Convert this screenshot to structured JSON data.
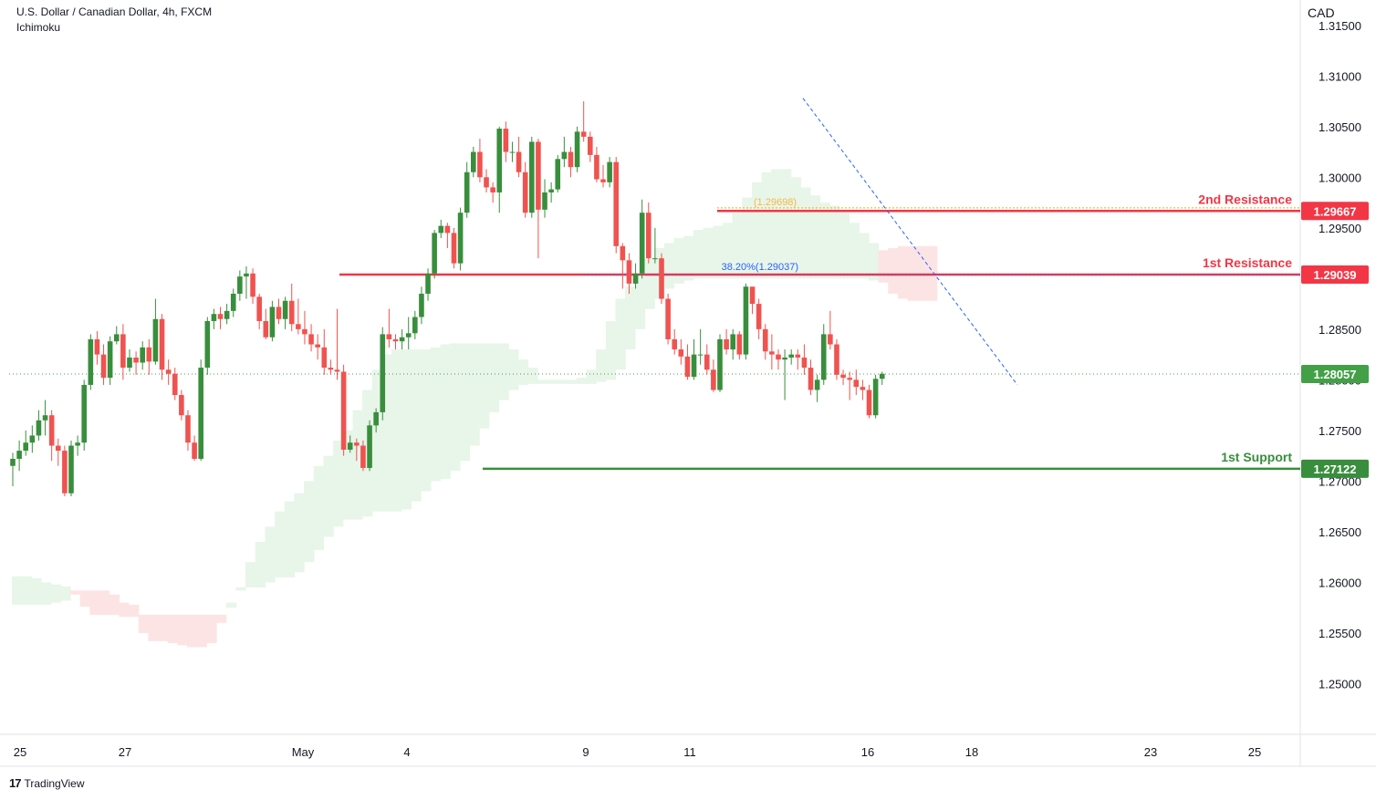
{
  "header": {
    "line1": "U.S. Dollar / Canadian Dollar, 4h, FXCM",
    "line2": "Ichimoku"
  },
  "axis": {
    "currency": "CAD"
  },
  "branding": {
    "name": "TradingView"
  },
  "colors": {
    "bull": "#388e3c",
    "bear": "#ef5350",
    "resistance": "#f23645",
    "support": "#388e3c",
    "fib_upper": "#f5b942",
    "fib_lower": "#2962ff",
    "cloud_green": "#e8f5e9",
    "cloud_red": "#fde4e4",
    "current_price": "#43a047"
  },
  "chart_data": {
    "type": "candlestick",
    "ylim": [
      1.245,
      1.3175
    ],
    "y_ticks": [
      "1.25000",
      "1.25500",
      "1.26000",
      "1.26500",
      "1.27000",
      "1.27500",
      "1.28000",
      "1.28500",
      "1.29000",
      "1.29500",
      "1.30000",
      "1.30500",
      "1.31000",
      "1.31500"
    ],
    "x_ticks": [
      "25",
      "27",
      "May",
      "4",
      "9",
      "11",
      "16",
      "18",
      "23",
      "25"
    ],
    "levels": [
      {
        "name": "2nd Resistance",
        "value": "1.29667",
        "kind": "resistance"
      },
      {
        "name": "1st Resistance",
        "value": "1.29039",
        "kind": "resistance"
      },
      {
        "name": "1st Support",
        "value": "1.27122",
        "kind": "support"
      }
    ],
    "current_price": "1.28057",
    "fibonacci": [
      {
        "label": "(1.29698)",
        "value": 1.29698
      },
      {
        "label": "38.20%(1.29037)",
        "value": 1.29037
      }
    ],
    "candles": [
      [
        1.2715,
        1.2722,
        1.2695,
        1.2728
      ],
      [
        1.2722,
        1.273,
        1.271,
        1.274
      ],
      [
        1.273,
        1.2738,
        1.2725,
        1.275
      ],
      [
        1.2738,
        1.2745,
        1.2728,
        1.2755
      ],
      [
        1.2745,
        1.276,
        1.274,
        1.277
      ],
      [
        1.276,
        1.2765,
        1.2745,
        1.278
      ],
      [
        1.2765,
        1.2735,
        1.272,
        1.277
      ],
      [
        1.2735,
        1.273,
        1.2715,
        1.2742
      ],
      [
        1.273,
        1.2688,
        1.2685,
        1.2735
      ],
      [
        1.2688,
        1.2735,
        1.2685,
        1.274
      ],
      [
        1.2735,
        1.2738,
        1.2725,
        1.2745
      ],
      [
        1.2738,
        1.2795,
        1.273,
        1.28
      ],
      [
        1.2795,
        1.284,
        1.279,
        1.2845
      ],
      [
        1.284,
        1.2825,
        1.2815,
        1.2848
      ],
      [
        1.2825,
        1.2802,
        1.2795,
        1.2835
      ],
      [
        1.2802,
        1.2838,
        1.2795,
        1.2843
      ],
      [
        1.2838,
        1.2845,
        1.2835,
        1.2853
      ],
      [
        1.2845,
        1.2812,
        1.28,
        1.2855
      ],
      [
        1.2812,
        1.2822,
        1.2808,
        1.283
      ],
      [
        1.2822,
        1.2817,
        1.2805,
        1.2828
      ],
      [
        1.2817,
        1.2832,
        1.281,
        1.2838
      ],
      [
        1.2832,
        1.2818,
        1.2805,
        1.284
      ],
      [
        1.2818,
        1.286,
        1.2815,
        1.288
      ],
      [
        1.286,
        1.281,
        1.28,
        1.2865
      ],
      [
        1.281,
        1.2806,
        1.2795,
        1.282
      ],
      [
        1.2806,
        1.2785,
        1.278,
        1.2812
      ],
      [
        1.2785,
        1.2765,
        1.276,
        1.279
      ],
      [
        1.2765,
        1.2738,
        1.273,
        1.277
      ],
      [
        1.2738,
        1.2722,
        1.272,
        1.2745
      ],
      [
        1.2722,
        1.2812,
        1.272,
        1.282
      ],
      [
        1.2812,
        1.2858,
        1.2805,
        1.2862
      ],
      [
        1.2858,
        1.2865,
        1.285,
        1.287
      ],
      [
        1.2865,
        1.286,
        1.285,
        1.2872
      ],
      [
        1.286,
        1.2868,
        1.2855,
        1.2875
      ],
      [
        1.2868,
        1.2885,
        1.2862,
        1.289
      ],
      [
        1.2885,
        1.2902,
        1.2878,
        1.2908
      ],
      [
        1.2902,
        1.2905,
        1.288,
        1.2912
      ],
      [
        1.2905,
        1.2882,
        1.2875,
        1.291
      ],
      [
        1.2882,
        1.2858,
        1.285,
        1.2885
      ],
      [
        1.2858,
        1.2842,
        1.284,
        1.287
      ],
      [
        1.2842,
        1.2872,
        1.2838,
        1.2878
      ],
      [
        1.2872,
        1.286,
        1.2855,
        1.288
      ],
      [
        1.286,
        1.2878,
        1.285,
        1.2882
      ],
      [
        1.2878,
        1.2855,
        1.2848,
        1.2895
      ],
      [
        1.2855,
        1.285,
        1.2845,
        1.288
      ],
      [
        1.285,
        1.2845,
        1.2835,
        1.2868
      ],
      [
        1.2845,
        1.2835,
        1.2828,
        1.2855
      ],
      [
        1.2835,
        1.2832,
        1.282,
        1.2845
      ],
      [
        1.2832,
        1.2812,
        1.2805,
        1.285
      ],
      [
        1.2812,
        1.281,
        1.2805,
        1.282
      ],
      [
        1.281,
        1.2808,
        1.28,
        1.287
      ],
      [
        1.2808,
        1.2731,
        1.2725,
        1.2815
      ],
      [
        1.2731,
        1.2738,
        1.2728,
        1.2745
      ],
      [
        1.2738,
        1.2735,
        1.272,
        1.2742
      ],
      [
        1.2735,
        1.2713,
        1.271,
        1.274
      ],
      [
        1.2713,
        1.2755,
        1.271,
        1.276
      ],
      [
        1.2755,
        1.2768,
        1.2748,
        1.2772
      ],
      [
        1.2768,
        1.2845,
        1.276,
        1.2852
      ],
      [
        1.2845,
        1.284,
        1.2832,
        1.287
      ],
      [
        1.284,
        1.2838,
        1.283,
        1.2845
      ],
      [
        1.2838,
        1.2842,
        1.283,
        1.285
      ],
      [
        1.2842,
        1.2846,
        1.283,
        1.2862
      ],
      [
        1.2846,
        1.2862,
        1.284,
        1.2868
      ],
      [
        1.2862,
        1.2885,
        1.2855,
        1.2892
      ],
      [
        1.2885,
        1.2905,
        1.2878,
        1.291
      ],
      [
        1.2905,
        1.2945,
        1.29,
        1.2948
      ],
      [
        1.2945,
        1.2952,
        1.294,
        1.2958
      ],
      [
        1.2952,
        1.2945,
        1.293,
        1.2955
      ],
      [
        1.2945,
        1.2915,
        1.291,
        1.295
      ],
      [
        1.2915,
        1.2965,
        1.2908,
        1.297
      ],
      [
        1.2965,
        1.3005,
        1.296,
        1.3015
      ],
      [
        1.3005,
        1.3025,
        1.3,
        1.303
      ],
      [
        1.3025,
        1.3,
        1.2995,
        1.3038
      ],
      [
        1.3,
        1.299,
        1.2985,
        1.3008
      ],
      [
        1.299,
        1.2985,
        1.2975,
        1.2995
      ],
      [
        1.2985,
        1.3048,
        1.2965,
        1.305
      ],
      [
        1.3048,
        1.3025,
        1.3015,
        1.3055
      ],
      [
        1.3025,
        1.3025,
        1.3015,
        1.3035
      ],
      [
        1.3025,
        1.3005,
        1.3,
        1.304
      ],
      [
        1.3005,
        1.2965,
        1.296,
        1.3015
      ],
      [
        1.2965,
        1.3035,
        1.296,
        1.304
      ],
      [
        1.3035,
        1.2968,
        1.292,
        1.3038
      ],
      [
        1.2968,
        1.2985,
        1.296,
        1.2998
      ],
      [
        1.2985,
        1.2988,
        1.2975,
        1.2995
      ],
      [
        1.2988,
        1.3018,
        1.2985,
        1.3022
      ],
      [
        1.3018,
        1.3025,
        1.301,
        1.304
      ],
      [
        1.3025,
        1.301,
        1.3,
        1.303
      ],
      [
        1.301,
        1.3045,
        1.3005,
        1.305
      ],
      [
        1.3045,
        1.304,
        1.3035,
        1.3075
      ],
      [
        1.304,
        1.3022,
        1.3015,
        1.3045
      ],
      [
        1.3022,
        1.2998,
        1.2995,
        1.303
      ],
      [
        1.2998,
        1.2995,
        1.299,
        1.3012
      ],
      [
        1.2995,
        1.3015,
        1.299,
        1.302
      ],
      [
        1.3015,
        1.2932,
        1.2925,
        1.302
      ],
      [
        1.2932,
        1.2918,
        1.289,
        1.2935
      ],
      [
        1.2918,
        1.2895,
        1.2885,
        1.2925
      ],
      [
        1.2895,
        1.2905,
        1.289,
        1.2915
      ],
      [
        1.2905,
        1.2965,
        1.29,
        1.2978
      ],
      [
        1.2965,
        1.292,
        1.2915,
        1.2975
      ],
      [
        1.292,
        1.292,
        1.2915,
        1.295
      ],
      [
        1.292,
        1.288,
        1.2875,
        1.2925
      ],
      [
        1.288,
        1.284,
        1.2835,
        1.2885
      ],
      [
        1.284,
        1.283,
        1.2825,
        1.285
      ],
      [
        1.283,
        1.2823,
        1.2815,
        1.284
      ],
      [
        1.2823,
        1.2803,
        1.28,
        1.2835
      ],
      [
        1.2803,
        1.2825,
        1.28,
        1.284
      ],
      [
        1.2825,
        1.2825,
        1.2815,
        1.285
      ],
      [
        1.2825,
        1.281,
        1.2805,
        1.2835
      ],
      [
        1.281,
        1.279,
        1.2788,
        1.282
      ],
      [
        1.279,
        1.284,
        1.2788,
        1.2845
      ],
      [
        1.284,
        1.283,
        1.2825,
        1.285
      ],
      [
        1.283,
        1.2845,
        1.282,
        1.285
      ],
      [
        1.2845,
        1.2825,
        1.282,
        1.2848
      ],
      [
        1.2825,
        1.2892,
        1.282,
        1.2895
      ],
      [
        1.2892,
        1.2875,
        1.2865,
        1.289
      ],
      [
        1.2875,
        1.285,
        1.284,
        1.288
      ],
      [
        1.285,
        1.2828,
        1.282,
        1.2855
      ],
      [
        1.2828,
        1.2825,
        1.281,
        1.2845
      ],
      [
        1.2825,
        1.282,
        1.281,
        1.283
      ],
      [
        1.282,
        1.2822,
        1.278,
        1.283
      ],
      [
        1.2822,
        1.2825,
        1.2815,
        1.283
      ],
      [
        1.2825,
        1.2822,
        1.281,
        1.283
      ],
      [
        1.2822,
        1.2812,
        1.2805,
        1.2835
      ],
      [
        1.2812,
        1.279,
        1.2785,
        1.282
      ],
      [
        1.279,
        1.28,
        1.2778,
        1.2805
      ],
      [
        1.28,
        1.2845,
        1.2795,
        1.2855
      ],
      [
        1.2845,
        1.2835,
        1.283,
        1.2868
      ],
      [
        1.2835,
        1.2805,
        1.28,
        1.284
      ],
      [
        1.2805,
        1.2802,
        1.2795,
        1.281
      ],
      [
        1.2802,
        1.28,
        1.278,
        1.2808
      ],
      [
        1.28,
        1.2793,
        1.2785,
        1.281
      ],
      [
        1.2793,
        1.279,
        1.278,
        1.28
      ],
      [
        1.279,
        1.2765,
        1.2762,
        1.2795
      ],
      [
        1.2765,
        1.2801,
        1.2762,
        1.2805
      ],
      [
        1.2801,
        1.2806,
        1.2795,
        1.2808
      ]
    ],
    "ichimoku_cloud": {
      "bands": [
        [
          1.2606,
          1.2578,
          "g"
        ],
        [
          1.2606,
          1.2578,
          "g"
        ],
        [
          1.2604,
          1.2578,
          "g"
        ],
        [
          1.26,
          1.2578,
          "g"
        ],
        [
          1.2598,
          1.258,
          "g"
        ],
        [
          1.2596,
          1.2582,
          "g"
        ],
        [
          1.2592,
          1.2588,
          "r"
        ],
        [
          1.2592,
          1.2576,
          "r"
        ],
        [
          1.2592,
          1.2568,
          "r"
        ],
        [
          1.2592,
          1.2568,
          "r"
        ],
        [
          1.2588,
          1.2568,
          "r"
        ],
        [
          1.258,
          1.2566,
          "r"
        ],
        [
          1.2578,
          1.2566,
          "r"
        ],
        [
          1.2568,
          1.255,
          "r"
        ],
        [
          1.2568,
          1.2542,
          "r"
        ],
        [
          1.2568,
          1.2542,
          "r"
        ],
        [
          1.2568,
          1.254,
          "r"
        ],
        [
          1.2568,
          1.2538,
          "r"
        ],
        [
          1.2568,
          1.2536,
          "r"
        ],
        [
          1.2568,
          1.2536,
          "r"
        ],
        [
          1.2568,
          1.254,
          "r"
        ],
        [
          1.2568,
          1.256,
          "r"
        ],
        [
          1.258,
          1.2575,
          "g"
        ],
        [
          1.2595,
          1.2592,
          "g"
        ],
        [
          1.262,
          1.2595,
          "g"
        ],
        [
          1.264,
          1.2595,
          "g"
        ],
        [
          1.2655,
          1.26,
          "g"
        ],
        [
          1.267,
          1.2605,
          "g"
        ],
        [
          1.268,
          1.2605,
          "g"
        ],
        [
          1.2688,
          1.261,
          "g"
        ],
        [
          1.27,
          1.262,
          "g"
        ],
        [
          1.2715,
          1.2632,
          "g"
        ],
        [
          1.2725,
          1.2645,
          "g"
        ],
        [
          1.274,
          1.2655,
          "g"
        ],
        [
          1.275,
          1.2662,
          "g"
        ],
        [
          1.277,
          1.2662,
          "g"
        ],
        [
          1.279,
          1.2665,
          "g"
        ],
        [
          1.281,
          1.267,
          "g"
        ],
        [
          1.2825,
          1.267,
          "g"
        ],
        [
          1.283,
          1.267,
          "g"
        ],
        [
          1.283,
          1.2672,
          "g"
        ],
        [
          1.283,
          1.268,
          "g"
        ],
        [
          1.283,
          1.269,
          "g"
        ],
        [
          1.2832,
          1.27,
          "g"
        ],
        [
          1.2835,
          1.2702,
          "g"
        ],
        [
          1.2836,
          1.271,
          "g"
        ],
        [
          1.2836,
          1.272,
          "g"
        ],
        [
          1.2836,
          1.2735,
          "g"
        ],
        [
          1.2836,
          1.2752,
          "g"
        ],
        [
          1.2836,
          1.2768,
          "g"
        ],
        [
          1.2836,
          1.278,
          "g"
        ],
        [
          1.283,
          1.279,
          "g"
        ],
        [
          1.282,
          1.2795,
          "g"
        ],
        [
          1.2812,
          1.2796,
          "g"
        ],
        [
          1.28,
          1.2796,
          "g"
        ],
        [
          1.28,
          1.2796,
          "g"
        ],
        [
          1.28,
          1.2796,
          "g"
        ],
        [
          1.28,
          1.2796,
          "g"
        ],
        [
          1.2802,
          1.2796,
          "g"
        ],
        [
          1.281,
          1.2796,
          "g"
        ],
        [
          1.283,
          1.2798,
          "g"
        ],
        [
          1.2858,
          1.28,
          "g"
        ],
        [
          1.288,
          1.281,
          "g"
        ],
        [
          1.2892,
          1.283,
          "g"
        ],
        [
          1.2902,
          1.285,
          "g"
        ],
        [
          1.292,
          1.287,
          "g"
        ],
        [
          1.293,
          1.288,
          "g"
        ],
        [
          1.2935,
          1.289,
          "g"
        ],
        [
          1.294,
          1.2895,
          "g"
        ],
        [
          1.2942,
          1.2898,
          "g"
        ],
        [
          1.2948,
          1.29,
          "g"
        ],
        [
          1.295,
          1.29,
          "g"
        ],
        [
          1.2952,
          1.29,
          "g"
        ],
        [
          1.2955,
          1.29,
          "g"
        ],
        [
          1.2965,
          1.29,
          "g"
        ],
        [
          1.298,
          1.29,
          "g"
        ],
        [
          1.2995,
          1.29,
          "g"
        ],
        [
          1.3005,
          1.29,
          "g"
        ],
        [
          1.3008,
          1.29,
          "g"
        ],
        [
          1.3008,
          1.29,
          "g"
        ],
        [
          1.3,
          1.29,
          "g"
        ],
        [
          1.299,
          1.29,
          "g"
        ],
        [
          1.2982,
          1.29,
          "g"
        ],
        [
          1.2975,
          1.29,
          "g"
        ],
        [
          1.2972,
          1.29,
          "g"
        ],
        [
          1.2965,
          1.29,
          "g"
        ],
        [
          1.2955,
          1.29,
          "g"
        ],
        [
          1.2945,
          1.29,
          "g"
        ],
        [
          1.2935,
          1.2898,
          "g"
        ],
        [
          1.2928,
          1.2896,
          "r"
        ],
        [
          1.293,
          1.2885,
          "r"
        ],
        [
          1.2932,
          1.288,
          "r"
        ],
        [
          1.2932,
          1.2878,
          "r"
        ],
        [
          1.2932,
          1.2878,
          "r"
        ],
        [
          1.2932,
          1.2878,
          "r"
        ]
      ]
    }
  }
}
